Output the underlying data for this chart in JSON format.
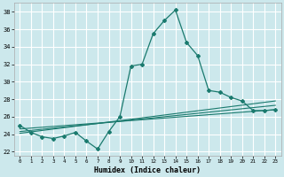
{
  "xlabel": "Humidex (Indice chaleur)",
  "background_color": "#cce8ec",
  "grid_color": "#ffffff",
  "line_color": "#1a7a6e",
  "xlim": [
    -0.5,
    23.5
  ],
  "ylim": [
    21.5,
    39.0
  ],
  "yticks": [
    22,
    24,
    26,
    28,
    30,
    32,
    34,
    36,
    38
  ],
  "xtick_labels": [
    "0",
    "1",
    "2",
    "3",
    "4",
    "5",
    "6",
    "7",
    "8",
    "9",
    "10",
    "11",
    "12",
    "13",
    "14",
    "15",
    "16",
    "17",
    "18",
    "19",
    "20",
    "21",
    "22",
    "23"
  ],
  "main_series": {
    "x": [
      0,
      1,
      2,
      3,
      4,
      5,
      6,
      7,
      8,
      9,
      10,
      11,
      12,
      13,
      14,
      15,
      16,
      17,
      18,
      19,
      20,
      21,
      22,
      23
    ],
    "y": [
      25.0,
      24.2,
      23.7,
      23.5,
      23.8,
      24.2,
      23.2,
      22.3,
      24.3,
      26.0,
      31.8,
      32.0,
      35.5,
      37.0,
      38.2,
      34.5,
      33.0,
      29.0,
      28.8,
      28.2,
      27.8,
      26.7,
      26.7,
      26.8
    ]
  },
  "trend_lines": [
    {
      "x": [
        0,
        23
      ],
      "y": [
        24.6,
        26.8
      ]
    },
    {
      "x": [
        0,
        23
      ],
      "y": [
        24.3,
        27.3
      ]
    },
    {
      "x": [
        0,
        23
      ],
      "y": [
        24.1,
        27.8
      ]
    }
  ]
}
